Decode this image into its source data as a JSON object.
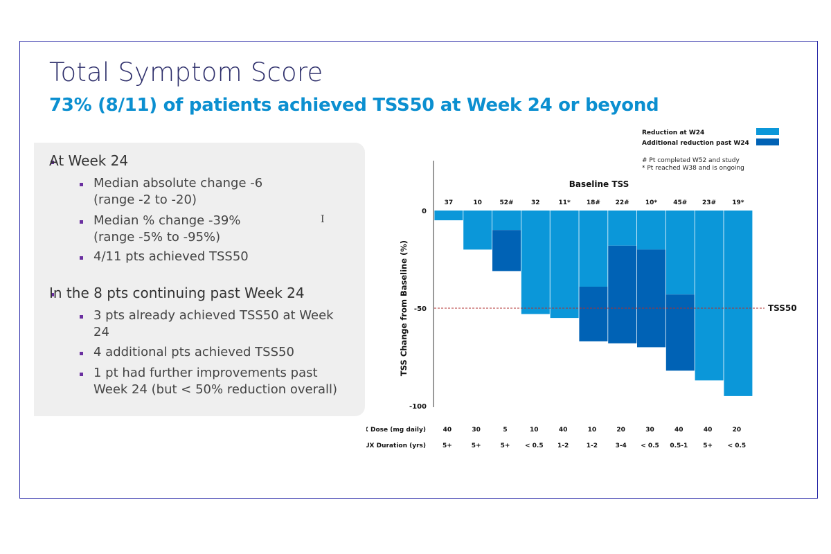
{
  "slide": {
    "title": "Total Symptom Score",
    "subtitle": "73% (8/11) of patients achieved TSS50 at Week 24 or beyond",
    "bullets": [
      {
        "text": "At Week 24",
        "sub": [
          {
            "l1": "Median absolute change -6",
            "l2": "(range -2 to -20)"
          },
          {
            "l1": "Median % change -39%",
            "l2": "(range -5% to -95%)"
          },
          {
            "l1": "4/11 pts achieved TSS50",
            "l2": ""
          }
        ]
      },
      {
        "text": "In the 8 pts continuing past Week 24",
        "sub": [
          {
            "l1": "3 pts already achieved TSS50 at Week",
            "l2": "24"
          },
          {
            "l1": "4 additional pts achieved TSS50",
            "l2": ""
          },
          {
            "l1": "1 pt had further improvements past",
            "l2": "Week 24 (but < 50% reduction overall)"
          }
        ]
      }
    ],
    "cursor_glyph": "I"
  },
  "chart_data": {
    "type": "bar",
    "ylabel": "TSS Change from Baseline (%)",
    "ylim": [
      -100,
      0
    ],
    "yticks": [
      "0",
      "-50",
      "-100"
    ],
    "ytick_values": [
      0,
      -50,
      -100
    ],
    "baseline_title": "Baseline TSS",
    "baseline_tss": [
      "37",
      "10",
      "52#",
      "32",
      "11*",
      "18#",
      "22#",
      "10*",
      "45#",
      "23#",
      "19*"
    ],
    "series": [
      {
        "name": "Reduction at W24",
        "color": "#0b97d9",
        "values": [
          -5,
          -20,
          -10,
          -53,
          -55,
          -39,
          -18,
          -20,
          -43,
          -87,
          -95
        ]
      },
      {
        "name": "Additional reduction past W24",
        "color": "#0062b5",
        "values": [
          0,
          0,
          -21,
          0,
          0,
          -28,
          -50,
          -50,
          -39,
          0,
          0
        ]
      }
    ],
    "reference_line": {
      "label": "TSS50",
      "value": -50,
      "color": "#b03030"
    },
    "legend_notes": [
      "# Pt completed W52 and study",
      "*  Pt reached W38 and is ongoing"
    ],
    "legend_position": "top-right",
    "dose_label": "BL RUX Dose (mg daily)",
    "dose": [
      "40",
      "30",
      "5",
      "10",
      "40",
      "10",
      "20",
      "30",
      "40",
      "40",
      "20"
    ],
    "duration_label": "Prior RUX Duration (yrs)",
    "duration": [
      "5+",
      "5+",
      "5+",
      "< 0.5",
      "1-2",
      "1-2",
      "3-4",
      "< 0.5",
      "0.5-1",
      "5+",
      "< 0.5"
    ]
  }
}
